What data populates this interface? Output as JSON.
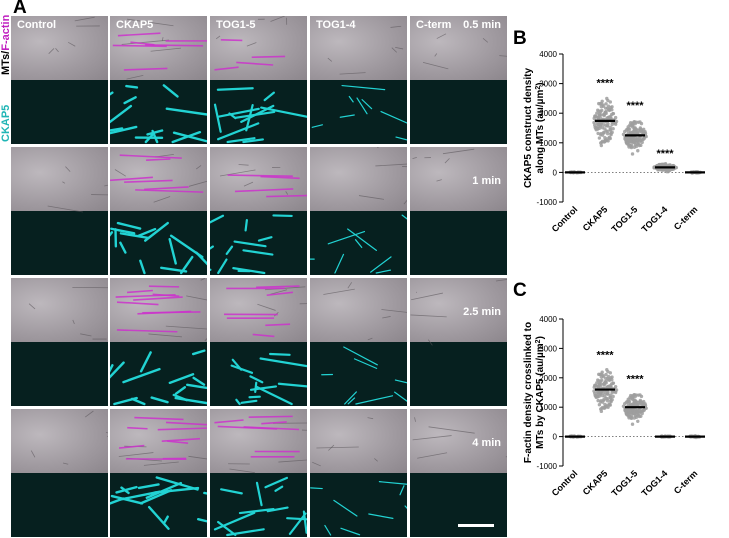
{
  "panels": {
    "a": "A",
    "b": "B",
    "c": "C"
  },
  "side_labels": {
    "top_left": "MTs/",
    "top_right": "F-actin",
    "bottom": "CKAP5"
  },
  "columns": [
    "Control",
    "CKAP5",
    "TOG1-5",
    "TOG1-4",
    "C-term"
  ],
  "time_points": [
    "0.5 min",
    "1 min",
    "2.5 min",
    "4 min"
  ],
  "colors": {
    "cyan": "#22d3d3",
    "magenta": "#cc33cc",
    "dot": "#9e9e9e",
    "dark": "#06201f"
  },
  "chart_data": [
    {
      "type": "scatter",
      "panel": "B",
      "ylabel_line1": "CKAP5 construct density",
      "ylabel_line2": "along MTs (au/µm",
      "ylabel_sup": "2",
      "ylabel_end": ")",
      "categories": [
        "Control",
        "CKAP5",
        "TOG1-5",
        "TOG1-4",
        "C-term"
      ],
      "medians": [
        0,
        1740,
        1250,
        170,
        0
      ],
      "spread": [
        30,
        900,
        650,
        150,
        30
      ],
      "significance": [
        "",
        "****",
        "****",
        "****",
        ""
      ],
      "ylim": [
        -1000,
        4000
      ],
      "yticks": [
        -1000,
        0,
        1000,
        2000,
        3000,
        4000
      ],
      "zero_line": "dotted"
    },
    {
      "type": "scatter",
      "panel": "C",
      "ylabel_line1": "F-actin density crosslinked to",
      "ylabel_line2": "MTs by CKAP5 (au/µm",
      "ylabel_sup": "2",
      "ylabel_end": ")",
      "categories": [
        "Control",
        "CKAP5",
        "TOG1-5",
        "TOG1-4",
        "C-term"
      ],
      "medians": [
        0,
        1600,
        1000,
        0,
        0
      ],
      "spread": [
        40,
        800,
        600,
        30,
        30
      ],
      "significance": [
        "",
        "****",
        "****",
        "",
        ""
      ],
      "ylim": [
        -1000,
        4000
      ],
      "yticks": [
        -1000,
        0,
        1000,
        2000,
        3000,
        4000
      ],
      "zero_line": "dotted"
    }
  ]
}
